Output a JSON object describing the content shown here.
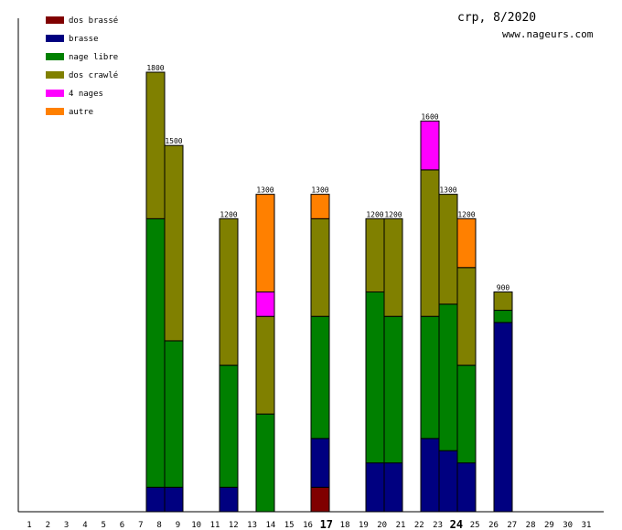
{
  "chart_data": {
    "type": "bar",
    "stacked": true,
    "title": "crp, 8/2020",
    "subtitle": "www.nageurs.com",
    "xlabel": "",
    "ylabel": "",
    "ylim": [
      0,
      1800
    ],
    "legend_position": "top-left",
    "categories": [
      "1",
      "2",
      "3",
      "4",
      "5",
      "6",
      "7",
      "8",
      "9",
      "10",
      "11",
      "12",
      "13",
      "14",
      "15",
      "16",
      "17",
      "18",
      "19",
      "20",
      "21",
      "22",
      "23",
      "24",
      "25",
      "26",
      "27",
      "28",
      "29",
      "30",
      "31"
    ],
    "highlighted_days": [
      "17",
      "24"
    ],
    "series": [
      {
        "name": "dos brassé",
        "color": "#800000",
        "values": [
          0,
          0,
          0,
          0,
          0,
          0,
          0,
          0,
          0,
          0,
          0,
          0,
          0,
          0,
          0,
          0,
          100,
          0,
          0,
          0,
          0,
          0,
          0,
          0,
          0,
          0,
          0,
          0,
          0,
          0,
          0
        ]
      },
      {
        "name": "brasse",
        "color": "#000080",
        "values": [
          0,
          0,
          0,
          0,
          0,
          0,
          0,
          100,
          100,
          0,
          0,
          100,
          0,
          0,
          0,
          0,
          200,
          0,
          0,
          200,
          200,
          0,
          300,
          250,
          200,
          0,
          775,
          0,
          0,
          0,
          0
        ]
      },
      {
        "name": "nage libre",
        "color": "#008000",
        "values": [
          0,
          0,
          0,
          0,
          0,
          0,
          0,
          1100,
          600,
          0,
          0,
          500,
          0,
          400,
          0,
          0,
          500,
          0,
          0,
          700,
          600,
          0,
          500,
          600,
          400,
          0,
          50,
          0,
          0,
          0,
          0
        ]
      },
      {
        "name": "dos crawlé",
        "color": "#808000",
        "values": [
          0,
          0,
          0,
          0,
          0,
          0,
          0,
          600,
          800,
          0,
          0,
          600,
          0,
          400,
          0,
          0,
          400,
          0,
          0,
          300,
          400,
          0,
          600,
          450,
          400,
          0,
          75,
          0,
          0,
          0,
          0
        ]
      },
      {
        "name": "4 nages",
        "color": "#ff00ff",
        "values": [
          0,
          0,
          0,
          0,
          0,
          0,
          0,
          0,
          0,
          0,
          0,
          0,
          0,
          100,
          0,
          0,
          0,
          0,
          0,
          0,
          0,
          0,
          200,
          0,
          0,
          0,
          0,
          0,
          0,
          0,
          0
        ]
      },
      {
        "name": "autre",
        "color": "#ff8000",
        "values": [
          0,
          0,
          0,
          0,
          0,
          0,
          0,
          0,
          0,
          0,
          0,
          0,
          0,
          400,
          0,
          0,
          100,
          0,
          0,
          0,
          0,
          0,
          0,
          0,
          200,
          0,
          0,
          0,
          0,
          0,
          0
        ]
      }
    ],
    "totals": [
      0,
      0,
      0,
      0,
      0,
      0,
      0,
      1800,
      1500,
      0,
      0,
      1200,
      0,
      1300,
      0,
      0,
      1300,
      0,
      0,
      1200,
      1200,
      0,
      1600,
      1300,
      1200,
      0,
      900,
      0,
      0,
      0,
      0
    ]
  }
}
